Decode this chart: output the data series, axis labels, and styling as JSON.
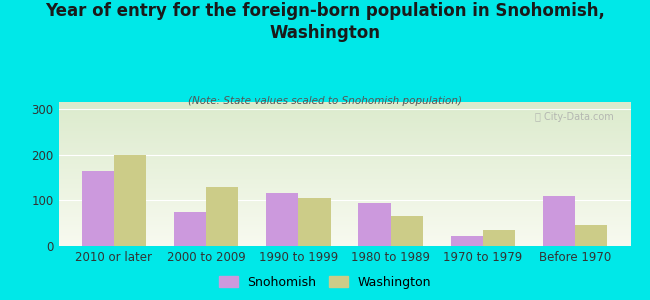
{
  "categories": [
    "2010 or later",
    "2000 to 2009",
    "1990 to 1999",
    "1980 to 1989",
    "1970 to 1979",
    "Before 1970"
  ],
  "snohomish_values": [
    165,
    75,
    115,
    93,
    22,
    110
  ],
  "washington_values": [
    200,
    130,
    105,
    65,
    35,
    45
  ],
  "snohomish_color": "#cc99dd",
  "washington_color": "#cccc88",
  "background_outer": "#00e8e8",
  "title": "Year of entry for the foreign-born population in Snohomish,\nWashington",
  "subtitle": "(Note: State values scaled to Snohomish population)",
  "ylabel_ticks": [
    0,
    100,
    200,
    300
  ],
  "ylim": [
    0,
    315
  ],
  "bar_width": 0.35,
  "title_fontsize": 12,
  "subtitle_fontsize": 7.5,
  "tick_fontsize": 8.5,
  "legend_fontsize": 9,
  "watermark": "ⓘ City-Data.com"
}
